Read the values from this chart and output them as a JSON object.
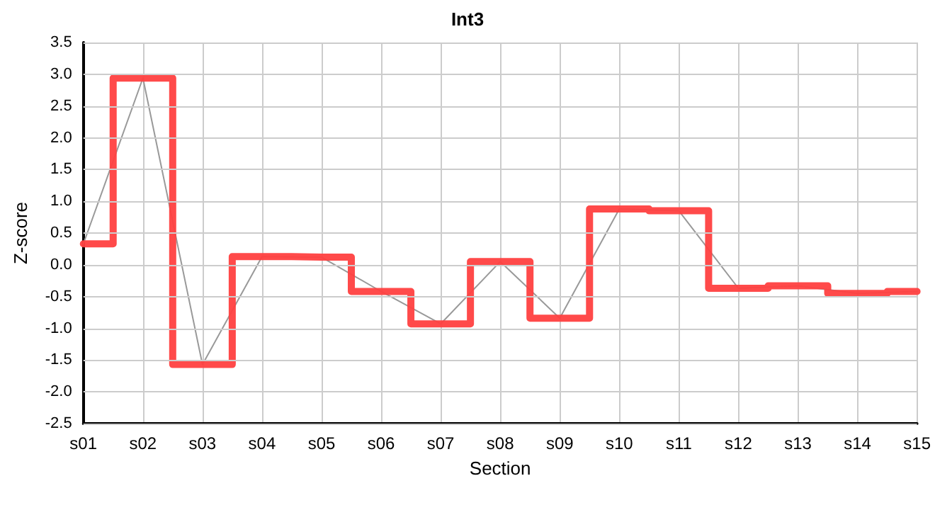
{
  "chart_data": {
    "type": "line",
    "title": "Int3",
    "xlabel": "Section",
    "ylabel": "Z-score",
    "categories": [
      "s01",
      "s02",
      "s03",
      "s04",
      "s05",
      "s06",
      "s07",
      "s08",
      "s09",
      "s10",
      "s11",
      "s12",
      "s13",
      "s14",
      "s15"
    ],
    "series": [
      {
        "type": "line",
        "color": "#999999",
        "values": [
          0.33,
          2.94,
          -1.57,
          0.13,
          0.12,
          -0.42,
          -0.93,
          0.05,
          -0.84,
          0.88,
          0.85,
          -0.37,
          -0.33,
          -0.45,
          -0.42
        ]
      },
      {
        "type": "step",
        "color": "#ff4040",
        "values": [
          0.33,
          2.94,
          -1.57,
          0.13,
          0.12,
          -0.42,
          -0.93,
          0.05,
          -0.84,
          0.88,
          0.85,
          -0.37,
          -0.33,
          -0.45,
          -0.42
        ]
      }
    ],
    "ylim": [
      -2.5,
      3.5
    ],
    "yticks": [
      -2.5,
      {
        "value": -2,
        "label": "-2.0"
      },
      -1.5,
      {
        "value": -1,
        "label": "-1.0"
      },
      -0.5,
      {
        "value": 0,
        "label": "0.0"
      },
      0.5,
      {
        "value": 1,
        "label": "1.0"
      },
      1.5,
      {
        "value": 2,
        "label": "2.0"
      },
      2.5,
      {
        "value": 3,
        "label": "3.0"
      },
      3.5
    ],
    "grid": true,
    "marker": "none"
  }
}
